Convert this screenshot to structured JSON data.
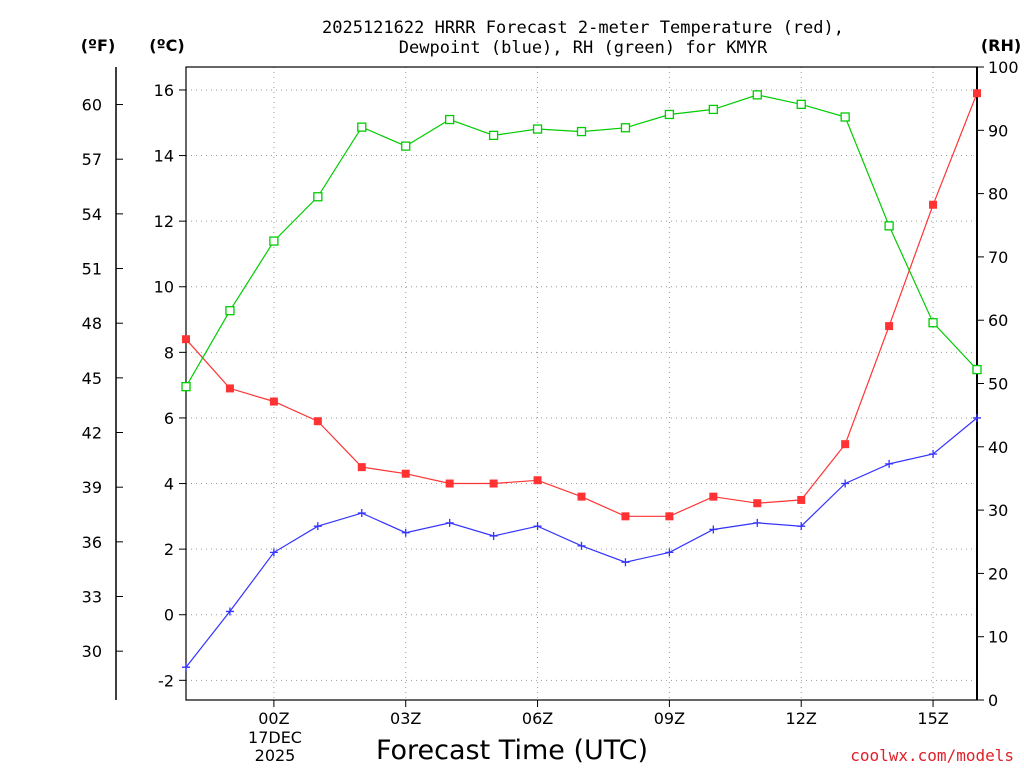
{
  "chart_data": {
    "type": "line",
    "title_line1": "2025121622 HRRR Forecast 2-meter Temperature (red),",
    "title_line2": "Dewpoint (blue), RH (green) for KMYR",
    "xlabel": "Forecast Time (UTC)",
    "credit": "coolwx.com/models",
    "units": {
      "fahrenheit": "(ºF)",
      "celsius": "(ºC)",
      "rh": "(RH)"
    },
    "date_label": {
      "day": "17DEC",
      "year": "2025"
    },
    "xlim": [
      -2,
      16
    ],
    "ylim_c": [
      -2.6,
      16.7
    ],
    "ylim_rh": [
      0,
      100
    ],
    "x_ticks": [
      {
        "x": 0,
        "label": "00Z"
      },
      {
        "x": 3,
        "label": "03Z"
      },
      {
        "x": 6,
        "label": "06Z"
      },
      {
        "x": 9,
        "label": "09Z"
      },
      {
        "x": 12,
        "label": "12Z"
      },
      {
        "x": 15,
        "label": "15Z"
      }
    ],
    "y_ticks_c": [
      "-2",
      "0",
      "2",
      "4",
      "6",
      "8",
      "10",
      "12",
      "14",
      "16"
    ],
    "y_ticks_f": [
      "30",
      "33",
      "36",
      "39",
      "42",
      "45",
      "48",
      "51",
      "54",
      "57",
      "60"
    ],
    "y_ticks_rh": [
      "0",
      "10",
      "20",
      "30",
      "40",
      "50",
      "60",
      "70",
      "80",
      "90",
      "100"
    ],
    "x": [
      -2,
      -1,
      0,
      1,
      2,
      3,
      4,
      5,
      6,
      7,
      8,
      9,
      10,
      11,
      12,
      13,
      14,
      15,
      16
    ],
    "series": [
      {
        "name": "Temperature",
        "axis": "c",
        "color": "#ff3333",
        "marker": "filled-square",
        "values": [
          8.4,
          6.9,
          6.5,
          5.9,
          4.5,
          4.3,
          4.0,
          4.0,
          4.1,
          3.6,
          3.0,
          3.0,
          3.6,
          3.4,
          3.5,
          5.2,
          8.8,
          12.5,
          15.9
        ]
      },
      {
        "name": "Dewpoint",
        "axis": "c",
        "color": "#3333ff",
        "marker": "plus",
        "values": [
          -1.6,
          0.1,
          1.9,
          2.7,
          3.1,
          2.5,
          2.8,
          2.4,
          2.7,
          2.1,
          1.6,
          1.9,
          2.6,
          2.8,
          2.7,
          4.0,
          4.6,
          4.9,
          6.0
        ]
      },
      {
        "name": "RH",
        "axis": "rh",
        "color": "#00cc00",
        "marker": "open-square",
        "values": [
          49.5,
          61.5,
          72.5,
          79.5,
          90.5,
          87.5,
          91.7,
          89.2,
          90.2,
          89.8,
          90.4,
          92.5,
          93.3,
          95.6,
          94.1,
          92.1,
          74.9,
          59.6,
          52.2
        ]
      }
    ]
  }
}
